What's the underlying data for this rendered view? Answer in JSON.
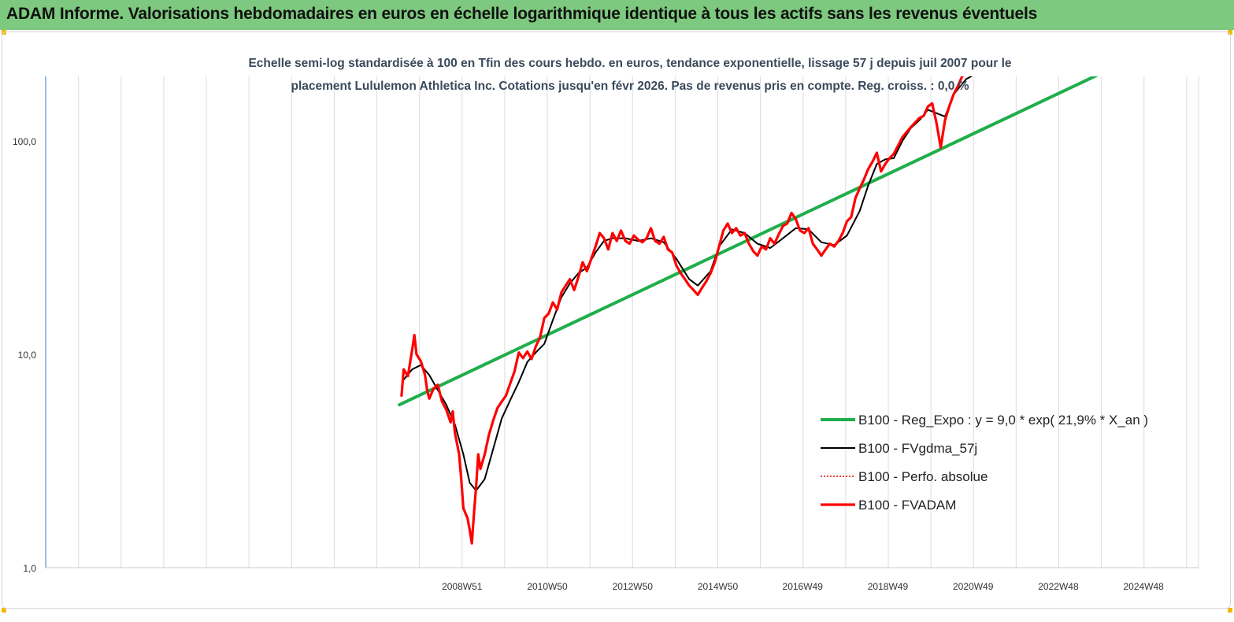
{
  "header": {
    "title": "ADAM Informe. Valorisations hebdomadaires en euros en échelle logarithmique identique à tous les actifs sans les revenus éventuels"
  },
  "chart_data": {
    "type": "line",
    "subtitle_line1": "Echelle semi-log standardisée à 100 en Tfin des cours hebdo. en euros, tendance exponentielle, lissage 57 j depuis juil 2007 pour le",
    "subtitle_line2": "placement Lululemon Athletica Inc. Cotations jusqu'en févr 2026. Pas de revenus pris en compte. Reg. croiss. : 0,0 %",
    "y_scale": "log",
    "ylim": [
      1,
      200
    ],
    "xlim": [
      1999.2,
      2026.25
    ],
    "y_ticks": [
      {
        "value": 1,
        "label": "1,0"
      },
      {
        "value": 10,
        "label": "10,0"
      },
      {
        "value": 100,
        "label": "100,0"
      }
    ],
    "x_ticks": [
      {
        "value": 2008.97,
        "label": "2008W51"
      },
      {
        "value": 2010.97,
        "label": "2010W50"
      },
      {
        "value": 2012.97,
        "label": "2012W50"
      },
      {
        "value": 2014.97,
        "label": "2014W50"
      },
      {
        "value": 2016.96,
        "label": "2016W49"
      },
      {
        "value": 2018.96,
        "label": "2018W49"
      },
      {
        "value": 2020.96,
        "label": "2020W49"
      },
      {
        "value": 2022.96,
        "label": "2022W48"
      },
      {
        "value": 2024.96,
        "label": "2024W48"
      }
    ],
    "grid": "vertical",
    "legend_position": "bottom-right",
    "series": [
      {
        "name": "B100 - Reg_Expo : y = 9,0 * exp( 21,9% *  X_an )",
        "color": "#1fae4b",
        "style": "solid",
        "points": [
          [
            2007.5,
            5.8
          ],
          [
            2026.1,
            330
          ]
        ]
      },
      {
        "name": "B100 - FVgdma_57j",
        "color": "#000000",
        "style": "solid",
        "points": [
          [
            2007.6,
            7.6
          ],
          [
            2007.8,
            8.5
          ],
          [
            2008.0,
            8.9
          ],
          [
            2008.2,
            8.0
          ],
          [
            2008.4,
            6.8
          ],
          [
            2008.6,
            5.8
          ],
          [
            2008.8,
            4.7
          ],
          [
            2009.0,
            3.4
          ],
          [
            2009.15,
            2.5
          ],
          [
            2009.3,
            2.3
          ],
          [
            2009.5,
            2.6
          ],
          [
            2009.7,
            3.6
          ],
          [
            2009.9,
            5.0
          ],
          [
            2010.1,
            6.1
          ],
          [
            2010.3,
            7.4
          ],
          [
            2010.5,
            9.2
          ],
          [
            2010.7,
            10.2
          ],
          [
            2010.9,
            11.2
          ],
          [
            2011.1,
            14.5
          ],
          [
            2011.3,
            18.5
          ],
          [
            2011.5,
            21.5
          ],
          [
            2011.7,
            24.0
          ],
          [
            2011.9,
            25.5
          ],
          [
            2012.1,
            30.0
          ],
          [
            2012.3,
            34.0
          ],
          [
            2012.5,
            35.0
          ],
          [
            2012.8,
            35.0
          ],
          [
            2013.1,
            34.0
          ],
          [
            2013.4,
            35.0
          ],
          [
            2013.7,
            33.5
          ],
          [
            2014.0,
            28.0
          ],
          [
            2014.3,
            22.5
          ],
          [
            2014.5,
            21.0
          ],
          [
            2014.8,
            24.5
          ],
          [
            2015.0,
            32.0
          ],
          [
            2015.3,
            38.5
          ],
          [
            2015.6,
            37.0
          ],
          [
            2015.9,
            33.0
          ],
          [
            2016.2,
            31.5
          ],
          [
            2016.5,
            35.0
          ],
          [
            2016.8,
            39.0
          ],
          [
            2017.1,
            38.5
          ],
          [
            2017.4,
            33.5
          ],
          [
            2017.7,
            32.5
          ],
          [
            2018.0,
            36.0
          ],
          [
            2018.3,
            47.0
          ],
          [
            2018.5,
            62.0
          ],
          [
            2018.7,
            78.0
          ],
          [
            2018.9,
            82.0
          ],
          [
            2019.1,
            83.0
          ],
          [
            2019.3,
            100.0
          ],
          [
            2019.5,
            115.0
          ],
          [
            2019.7,
            125.0
          ],
          [
            2019.9,
            140.0
          ],
          [
            2020.1,
            135.0
          ],
          [
            2020.3,
            130.0
          ],
          [
            2020.5,
            165.0
          ],
          [
            2020.8,
            195.0
          ],
          [
            2021.0,
            205.0
          ]
        ]
      },
      {
        "name": "B100 - Perfo. absolue",
        "color": "#e00000",
        "style": "dotted",
        "points": []
      },
      {
        "name": "B100 - FVADAM",
        "color": "#ff0000",
        "style": "solid",
        "points": [
          [
            2007.55,
            6.4
          ],
          [
            2007.6,
            8.5
          ],
          [
            2007.7,
            7.9
          ],
          [
            2007.8,
            10.5
          ],
          [
            2007.85,
            12.3
          ],
          [
            2007.9,
            10.0
          ],
          [
            2008.0,
            9.3
          ],
          [
            2008.1,
            8.0
          ],
          [
            2008.15,
            6.8
          ],
          [
            2008.2,
            6.2
          ],
          [
            2008.3,
            6.9
          ],
          [
            2008.4,
            7.2
          ],
          [
            2008.5,
            6.0
          ],
          [
            2008.6,
            5.5
          ],
          [
            2008.7,
            4.8
          ],
          [
            2008.75,
            5.4
          ],
          [
            2008.8,
            4.3
          ],
          [
            2008.9,
            3.4
          ],
          [
            2008.95,
            2.6
          ],
          [
            2009.0,
            1.9
          ],
          [
            2009.1,
            1.7
          ],
          [
            2009.15,
            1.5
          ],
          [
            2009.2,
            1.3
          ],
          [
            2009.25,
            1.8
          ],
          [
            2009.3,
            2.4
          ],
          [
            2009.35,
            3.4
          ],
          [
            2009.4,
            2.9
          ],
          [
            2009.5,
            3.4
          ],
          [
            2009.6,
            4.2
          ],
          [
            2009.7,
            4.9
          ],
          [
            2009.8,
            5.6
          ],
          [
            2009.9,
            6.0
          ],
          [
            2010.0,
            6.4
          ],
          [
            2010.1,
            7.3
          ],
          [
            2010.2,
            8.3
          ],
          [
            2010.3,
            10.2
          ],
          [
            2010.4,
            9.6
          ],
          [
            2010.5,
            10.3
          ],
          [
            2010.6,
            9.5
          ],
          [
            2010.7,
            10.9
          ],
          [
            2010.8,
            12.0
          ],
          [
            2010.9,
            14.8
          ],
          [
            2011.0,
            15.5
          ],
          [
            2011.1,
            17.5
          ],
          [
            2011.2,
            16.2
          ],
          [
            2011.3,
            19.5
          ],
          [
            2011.4,
            21.0
          ],
          [
            2011.5,
            22.5
          ],
          [
            2011.6,
            20.0
          ],
          [
            2011.7,
            23.0
          ],
          [
            2011.8,
            27.0
          ],
          [
            2011.9,
            24.5
          ],
          [
            2012.0,
            28.0
          ],
          [
            2012.1,
            32.0
          ],
          [
            2012.2,
            37.0
          ],
          [
            2012.3,
            35.0
          ],
          [
            2012.4,
            31.0
          ],
          [
            2012.5,
            37.0
          ],
          [
            2012.6,
            34.0
          ],
          [
            2012.7,
            38.0
          ],
          [
            2012.8,
            34.0
          ],
          [
            2012.9,
            33.0
          ],
          [
            2013.0,
            36.0
          ],
          [
            2013.1,
            34.5
          ],
          [
            2013.2,
            33.5
          ],
          [
            2013.3,
            35.0
          ],
          [
            2013.4,
            39.0
          ],
          [
            2013.5,
            34.0
          ],
          [
            2013.6,
            33.0
          ],
          [
            2013.7,
            35.5
          ],
          [
            2013.8,
            31.0
          ],
          [
            2013.9,
            30.0
          ],
          [
            2014.0,
            26.0
          ],
          [
            2014.1,
            24.0
          ],
          [
            2014.2,
            22.5
          ],
          [
            2014.3,
            21.0
          ],
          [
            2014.4,
            20.0
          ],
          [
            2014.5,
            19.0
          ],
          [
            2014.6,
            20.5
          ],
          [
            2014.7,
            22.0
          ],
          [
            2014.8,
            24.0
          ],
          [
            2014.9,
            27.0
          ],
          [
            2015.0,
            32.0
          ],
          [
            2015.1,
            38.0
          ],
          [
            2015.2,
            41.0
          ],
          [
            2015.3,
            37.0
          ],
          [
            2015.4,
            39.0
          ],
          [
            2015.5,
            36.0
          ],
          [
            2015.6,
            37.0
          ],
          [
            2015.7,
            33.0
          ],
          [
            2015.8,
            30.5
          ],
          [
            2015.9,
            29.0
          ],
          [
            2016.0,
            32.0
          ],
          [
            2016.1,
            31.0
          ],
          [
            2016.2,
            35.0
          ],
          [
            2016.3,
            33.0
          ],
          [
            2016.4,
            36.5
          ],
          [
            2016.5,
            40.0
          ],
          [
            2016.6,
            41.0
          ],
          [
            2016.7,
            46.0
          ],
          [
            2016.8,
            43.0
          ],
          [
            2016.9,
            38.0
          ],
          [
            2017.0,
            37.0
          ],
          [
            2017.1,
            39.0
          ],
          [
            2017.2,
            33.0
          ],
          [
            2017.3,
            31.0
          ],
          [
            2017.4,
            29.0
          ],
          [
            2017.5,
            31.0
          ],
          [
            2017.6,
            33.0
          ],
          [
            2017.7,
            32.0
          ],
          [
            2017.8,
            34.0
          ],
          [
            2017.9,
            37.0
          ],
          [
            2018.0,
            42.0
          ],
          [
            2018.1,
            44.0
          ],
          [
            2018.2,
            54.0
          ],
          [
            2018.3,
            60.0
          ],
          [
            2018.4,
            66.0
          ],
          [
            2018.5,
            74.0
          ],
          [
            2018.6,
            80.0
          ],
          [
            2018.7,
            88.0
          ],
          [
            2018.8,
            72.0
          ],
          [
            2018.9,
            78.0
          ],
          [
            2019.0,
            83.0
          ],
          [
            2019.1,
            87.0
          ],
          [
            2019.2,
            95.0
          ],
          [
            2019.3,
            104.0
          ],
          [
            2019.4,
            110.0
          ],
          [
            2019.5,
            116.0
          ],
          [
            2019.6,
            122.0
          ],
          [
            2019.7,
            128.0
          ],
          [
            2019.8,
            131.0
          ],
          [
            2019.9,
            145.0
          ],
          [
            2020.0,
            150.0
          ],
          [
            2020.1,
            122.0
          ],
          [
            2020.2,
            93.0
          ],
          [
            2020.3,
            125.0
          ],
          [
            2020.4,
            145.0
          ],
          [
            2020.5,
            165.0
          ],
          [
            2020.6,
            180.0
          ],
          [
            2020.7,
            200.0
          ],
          [
            2020.8,
            210.0
          ]
        ]
      }
    ]
  }
}
